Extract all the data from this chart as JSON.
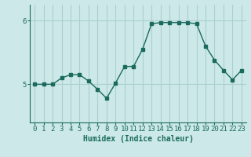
{
  "x": [
    0,
    1,
    2,
    3,
    4,
    5,
    6,
    7,
    8,
    9,
    10,
    11,
    12,
    13,
    14,
    15,
    16,
    17,
    18,
    19,
    20,
    21,
    22,
    23
  ],
  "y": [
    5.0,
    5.0,
    5.0,
    5.1,
    5.15,
    5.15,
    5.05,
    4.92,
    4.78,
    5.02,
    5.28,
    5.28,
    5.55,
    5.95,
    5.97,
    5.97,
    5.97,
    5.97,
    5.95,
    5.6,
    5.38,
    5.22,
    5.07,
    5.22
  ],
  "line_color": "#1a6b5e",
  "marker": "s",
  "marker_size": 2.5,
  "bg_color": "#cce8e8",
  "grid_color": "#aad0d0",
  "xlabel": "Humidex (Indice chaleur)",
  "xlabel_fontsize": 7,
  "tick_fontsize": 6.5,
  "yticks": [
    5,
    6
  ],
  "ylim": [
    4.4,
    6.25
  ],
  "xlim": [
    -0.5,
    23.5
  ],
  "title": ""
}
